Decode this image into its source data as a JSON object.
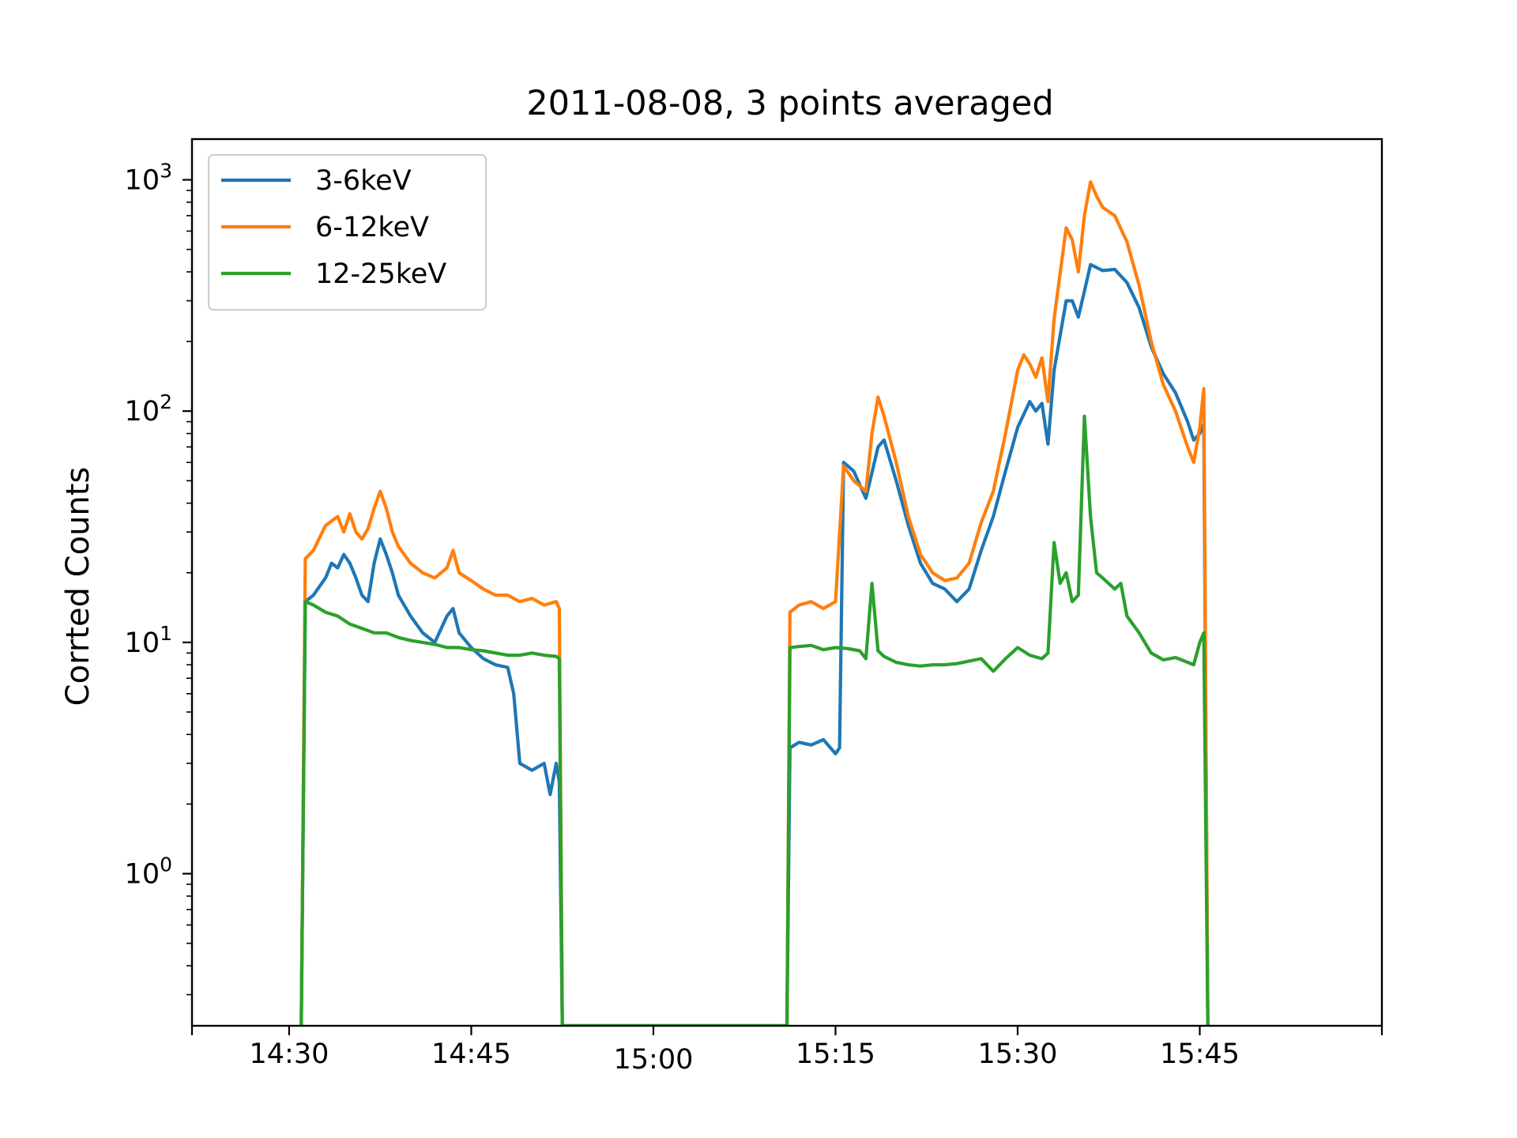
{
  "chart_data": {
    "type": "line",
    "title": "2011-08-08, 3 points averaged",
    "xlabel": "",
    "ylabel": "Corrted Counts",
    "yscale": "log",
    "ylim": [
      0.22,
      1500
    ],
    "xlim": [
      "14:22",
      "16:00"
    ],
    "grid": false,
    "legend_position": "top-left",
    "x_tick_labels": [
      "14:30",
      "14:45",
      "15:00",
      "15:15",
      "15:30",
      "15:45"
    ],
    "y_tick_labels": [
      {
        "base": "10",
        "exp": "0"
      },
      {
        "base": "10",
        "exp": "1"
      },
      {
        "base": "10",
        "exp": "2"
      },
      {
        "base": "10",
        "exp": "3"
      }
    ],
    "series": [
      {
        "name": "3-6keV",
        "color": "#1f77b4",
        "points": [
          [
            "14:31:00",
            0.2
          ],
          [
            "14:31:20",
            15
          ],
          [
            "14:32:00",
            16
          ],
          [
            "14:33:00",
            19
          ],
          [
            "14:33:30",
            22
          ],
          [
            "14:34:00",
            21
          ],
          [
            "14:34:30",
            24
          ],
          [
            "14:35:00",
            22
          ],
          [
            "14:35:30",
            19
          ],
          [
            "14:36:00",
            16
          ],
          [
            "14:36:30",
            15
          ],
          [
            "14:37:00",
            22
          ],
          [
            "14:37:30",
            28
          ],
          [
            "14:38:00",
            24
          ],
          [
            "14:38:30",
            20
          ],
          [
            "14:39:00",
            16
          ],
          [
            "14:40:00",
            13
          ],
          [
            "14:41:00",
            11
          ],
          [
            "14:42:00",
            10
          ],
          [
            "14:43:00",
            13
          ],
          [
            "14:43:30",
            14
          ],
          [
            "14:44:00",
            11
          ],
          [
            "14:45:00",
            9.5
          ],
          [
            "14:46:00",
            8.5
          ],
          [
            "14:47:00",
            8
          ],
          [
            "14:48:00",
            7.8
          ],
          [
            "14:48:30",
            6
          ],
          [
            "14:49:00",
            3
          ],
          [
            "14:50:00",
            2.8
          ],
          [
            "14:51:00",
            3
          ],
          [
            "14:51:30",
            2.2
          ],
          [
            "14:52:00",
            3
          ],
          [
            "14:52:15",
            2.5
          ],
          [
            "14:52:30",
            0.2
          ],
          [
            "15:11:00",
            0.2
          ],
          [
            "15:11:15",
            3.5
          ],
          [
            "15:12:00",
            3.7
          ],
          [
            "15:13:00",
            3.6
          ],
          [
            "15:14:00",
            3.8
          ],
          [
            "15:15:00",
            3.3
          ],
          [
            "15:15:20",
            3.5
          ],
          [
            "15:15:40",
            60
          ],
          [
            "15:16:30",
            55
          ],
          [
            "15:17:30",
            42
          ],
          [
            "15:18:30",
            70
          ],
          [
            "15:19:00",
            75
          ],
          [
            "15:20:00",
            50
          ],
          [
            "15:21:00",
            32
          ],
          [
            "15:22:00",
            22
          ],
          [
            "15:23:00",
            18
          ],
          [
            "15:24:00",
            17
          ],
          [
            "15:25:00",
            15
          ],
          [
            "15:26:00",
            17
          ],
          [
            "15:27:00",
            25
          ],
          [
            "15:28:00",
            35
          ],
          [
            "15:29:00",
            55
          ],
          [
            "15:30:00",
            85
          ],
          [
            "15:31:00",
            110
          ],
          [
            "15:31:30",
            100
          ],
          [
            "15:32:00",
            108
          ],
          [
            "15:32:30",
            72
          ],
          [
            "15:33:00",
            150
          ],
          [
            "15:34:00",
            300
          ],
          [
            "15:34:30",
            300
          ],
          [
            "15:35:00",
            255
          ],
          [
            "15:35:30",
            330
          ],
          [
            "15:36:00",
            430
          ],
          [
            "15:37:00",
            405
          ],
          [
            "15:38:00",
            410
          ],
          [
            "15:39:00",
            360
          ],
          [
            "15:40:00",
            280
          ],
          [
            "15:41:00",
            190
          ],
          [
            "15:42:00",
            145
          ],
          [
            "15:43:00",
            120
          ],
          [
            "15:44:00",
            90
          ],
          [
            "15:44:30",
            75
          ],
          [
            "15:45:00",
            80
          ],
          [
            "15:45:20",
            88
          ],
          [
            "15:45:40",
            0.2
          ]
        ]
      },
      {
        "name": "6-12keV",
        "color": "#ff7f0e",
        "points": [
          [
            "14:31:00",
            0.2
          ],
          [
            "14:31:20",
            23
          ],
          [
            "14:32:00",
            25
          ],
          [
            "14:33:00",
            32
          ],
          [
            "14:34:00",
            35
          ],
          [
            "14:34:30",
            30
          ],
          [
            "14:35:00",
            36
          ],
          [
            "14:35:30",
            30
          ],
          [
            "14:36:00",
            28
          ],
          [
            "14:36:30",
            31
          ],
          [
            "14:37:00",
            38
          ],
          [
            "14:37:30",
            45
          ],
          [
            "14:38:00",
            38
          ],
          [
            "14:38:30",
            30
          ],
          [
            "14:39:00",
            26
          ],
          [
            "14:40:00",
            22
          ],
          [
            "14:41:00",
            20
          ],
          [
            "14:42:00",
            19
          ],
          [
            "14:43:00",
            21
          ],
          [
            "14:43:30",
            25
          ],
          [
            "14:44:00",
            20
          ],
          [
            "14:45:00",
            18.5
          ],
          [
            "14:46:00",
            17
          ],
          [
            "14:47:00",
            16
          ],
          [
            "14:48:00",
            16
          ],
          [
            "14:49:00",
            15
          ],
          [
            "14:50:00",
            15.5
          ],
          [
            "14:51:00",
            14.5
          ],
          [
            "14:52:00",
            15
          ],
          [
            "14:52:15",
            14
          ],
          [
            "14:52:30",
            0.2
          ],
          [
            "15:11:00",
            0.2
          ],
          [
            "15:11:15",
            13.5
          ],
          [
            "15:12:00",
            14.5
          ],
          [
            "15:13:00",
            15
          ],
          [
            "15:14:00",
            14
          ],
          [
            "15:15:00",
            15
          ],
          [
            "15:15:40",
            58
          ],
          [
            "15:16:30",
            50
          ],
          [
            "15:17:30",
            45
          ],
          [
            "15:18:00",
            80
          ],
          [
            "15:18:30",
            115
          ],
          [
            "15:19:00",
            95
          ],
          [
            "15:20:00",
            60
          ],
          [
            "15:21:00",
            35
          ],
          [
            "15:22:00",
            24
          ],
          [
            "15:23:00",
            20
          ],
          [
            "15:24:00",
            18.5
          ],
          [
            "15:25:00",
            19
          ],
          [
            "15:26:00",
            22
          ],
          [
            "15:27:00",
            33
          ],
          [
            "15:28:00",
            45
          ],
          [
            "15:29:00",
            80
          ],
          [
            "15:30:00",
            150
          ],
          [
            "15:30:30",
            175
          ],
          [
            "15:31:00",
            160
          ],
          [
            "15:31:30",
            140
          ],
          [
            "15:32:00",
            170
          ],
          [
            "15:32:30",
            110
          ],
          [
            "15:33:00",
            250
          ],
          [
            "15:34:00",
            620
          ],
          [
            "15:34:30",
            550
          ],
          [
            "15:35:00",
            400
          ],
          [
            "15:35:30",
            700
          ],
          [
            "15:36:00",
            980
          ],
          [
            "15:36:30",
            850
          ],
          [
            "15:37:00",
            760
          ],
          [
            "15:38:00",
            700
          ],
          [
            "15:39:00",
            540
          ],
          [
            "15:40:00",
            350
          ],
          [
            "15:41:00",
            200
          ],
          [
            "15:42:00",
            130
          ],
          [
            "15:43:00",
            100
          ],
          [
            "15:44:00",
            70
          ],
          [
            "15:44:30",
            60
          ],
          [
            "15:45:00",
            85
          ],
          [
            "15:45:20",
            125
          ],
          [
            "15:45:40",
            0.2
          ]
        ]
      },
      {
        "name": "12-25keV",
        "color": "#2ca02c",
        "points": [
          [
            "14:31:00",
            0.2
          ],
          [
            "14:31:20",
            15
          ],
          [
            "14:32:00",
            14.5
          ],
          [
            "14:33:00",
            13.5
          ],
          [
            "14:34:00",
            13
          ],
          [
            "14:35:00",
            12
          ],
          [
            "14:36:00",
            11.5
          ],
          [
            "14:37:00",
            11
          ],
          [
            "14:38:00",
            11
          ],
          [
            "14:39:00",
            10.5
          ],
          [
            "14:40:00",
            10.2
          ],
          [
            "14:41:00",
            10
          ],
          [
            "14:42:00",
            9.8
          ],
          [
            "14:43:00",
            9.5
          ],
          [
            "14:44:00",
            9.5
          ],
          [
            "14:45:00",
            9.3
          ],
          [
            "14:46:00",
            9.2
          ],
          [
            "14:47:00",
            9
          ],
          [
            "14:48:00",
            8.8
          ],
          [
            "14:49:00",
            8.8
          ],
          [
            "14:50:00",
            9
          ],
          [
            "14:51:00",
            8.8
          ],
          [
            "14:52:00",
            8.7
          ],
          [
            "14:52:15",
            8.5
          ],
          [
            "14:52:30",
            0.2
          ],
          [
            "15:11:00",
            0.2
          ],
          [
            "15:11:15",
            9.5
          ],
          [
            "15:12:00",
            9.6
          ],
          [
            "15:13:00",
            9.7
          ],
          [
            "15:14:00",
            9.3
          ],
          [
            "15:15:00",
            9.5
          ],
          [
            "15:16:00",
            9.4
          ],
          [
            "15:17:00",
            9.2
          ],
          [
            "15:17:30",
            8.5
          ],
          [
            "15:18:00",
            18
          ],
          [
            "15:18:30",
            9.2
          ],
          [
            "15:19:00",
            8.7
          ],
          [
            "15:20:00",
            8.2
          ],
          [
            "15:21:00",
            8
          ],
          [
            "15:22:00",
            7.9
          ],
          [
            "15:23:00",
            8
          ],
          [
            "15:24:00",
            8
          ],
          [
            "15:25:00",
            8.1
          ],
          [
            "15:26:00",
            8.3
          ],
          [
            "15:27:00",
            8.5
          ],
          [
            "15:28:00",
            7.5
          ],
          [
            "15:29:00",
            8.5
          ],
          [
            "15:30:00",
            9.5
          ],
          [
            "15:31:00",
            8.8
          ],
          [
            "15:32:00",
            8.5
          ],
          [
            "15:32:30",
            9
          ],
          [
            "15:33:00",
            27
          ],
          [
            "15:33:30",
            18
          ],
          [
            "15:34:00",
            20
          ],
          [
            "15:34:30",
            15
          ],
          [
            "15:35:00",
            16
          ],
          [
            "15:35:30",
            95
          ],
          [
            "15:36:00",
            35
          ],
          [
            "15:36:30",
            20
          ],
          [
            "15:37:00",
            19
          ],
          [
            "15:38:00",
            17
          ],
          [
            "15:38:30",
            18
          ],
          [
            "15:39:00",
            13
          ],
          [
            "15:40:00",
            11
          ],
          [
            "15:41:00",
            9
          ],
          [
            "15:42:00",
            8.4
          ],
          [
            "15:43:00",
            8.6
          ],
          [
            "15:44:00",
            8.2
          ],
          [
            "15:44:30",
            8
          ],
          [
            "15:45:00",
            10
          ],
          [
            "15:45:20",
            11
          ],
          [
            "15:45:40",
            0.2
          ]
        ]
      }
    ]
  }
}
